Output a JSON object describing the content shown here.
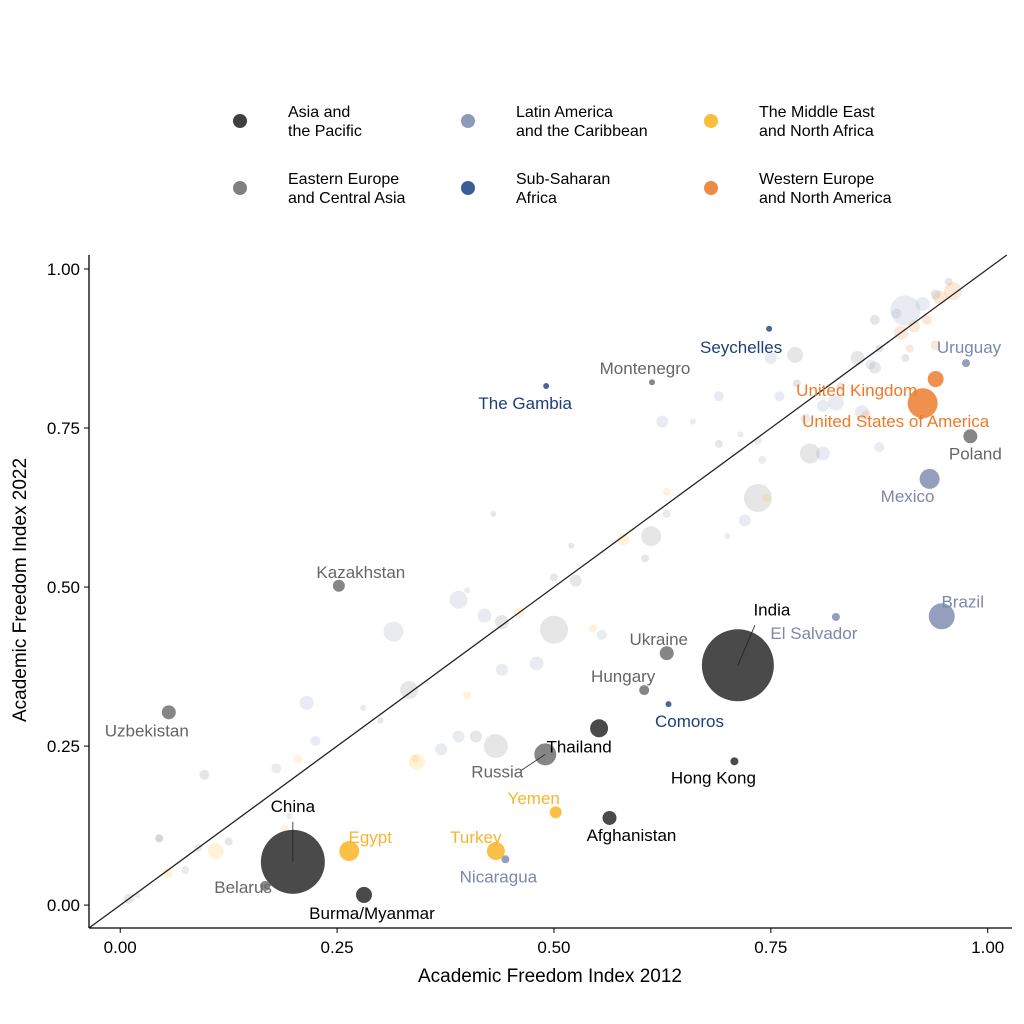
{
  "chart_data": {
    "type": "scatter",
    "title": "",
    "xlabel": "Academic Freedom Index 2012",
    "ylabel": "Academic Freedom Index 2022",
    "xlim": [
      -0.036,
      1.028
    ],
    "ylim": [
      -0.036,
      1.022
    ],
    "xticks": [
      0,
      0.25,
      0.5,
      0.75,
      1
    ],
    "xtick_labels": [
      "0.00",
      "0.25",
      "0.50",
      "0.75",
      "1.00"
    ],
    "yticks": [
      0,
      0.25,
      0.5,
      0.75,
      1
    ],
    "ytick_labels": [
      "0.00",
      "0.25",
      "0.50",
      "0.75",
      "1.00"
    ],
    "grid": false,
    "reference_line": "y = x",
    "legend_placement": "top",
    "regions": [
      {
        "key": "asia",
        "label": "Asia and\nthe Pacific",
        "color": "#404040",
        "label_color": "#000000"
      },
      {
        "key": "latam",
        "label": "Latin America\nand the Caribbean",
        "color": "#8e9aba",
        "label_color": "#7a88ab"
      },
      {
        "key": "mena",
        "label": "The Middle East\nand North Africa",
        "color": "#fbbd3c",
        "label_color": "#f7b52c"
      },
      {
        "key": "eeca",
        "label": "Eastern Europe\nand Central Asia",
        "color": "#808080",
        "label_color": "#666666"
      },
      {
        "key": "ssa",
        "label": "Sub-Saharan\nAfrica",
        "color": "#3a5f94",
        "label_color": "#1d3f75"
      },
      {
        "key": "wena",
        "label": "Western Europe\nand North America",
        "color": "#ef8a44",
        "label_color": "#ef7a28"
      }
    ],
    "highlighted": [
      {
        "name": "China",
        "region": "asia",
        "x": 0.199,
        "y": 0.068,
        "size": 32
      },
      {
        "name": "India",
        "region": "asia",
        "x": 0.712,
        "y": 0.377,
        "size": 36
      },
      {
        "name": "Burma/Myanmar",
        "region": "asia",
        "x": 0.281,
        "y": 0.016,
        "size": 8
      },
      {
        "name": "Thailand",
        "region": "asia",
        "x": 0.552,
        "y": 0.278,
        "size": 9
      },
      {
        "name": "Afghanistan",
        "region": "asia",
        "x": 0.564,
        "y": 0.137,
        "size": 7
      },
      {
        "name": "Hong Kong",
        "region": "asia",
        "x": 0.708,
        "y": 0.226,
        "size": 4
      },
      {
        "name": "Belarus",
        "region": "eeca",
        "x": 0.167,
        "y": 0.03,
        "size": 5
      },
      {
        "name": "Uzbekistan",
        "region": "eeca",
        "x": 0.056,
        "y": 0.303,
        "size": 7
      },
      {
        "name": "Kazakhstan",
        "region": "eeca",
        "x": 0.252,
        "y": 0.502,
        "size": 6
      },
      {
        "name": "Montenegro",
        "region": "eeca",
        "x": 0.613,
        "y": 0.822,
        "size": 3
      },
      {
        "name": "Russia",
        "region": "eeca",
        "x": 0.49,
        "y": 0.237,
        "size": 11
      },
      {
        "name": "Hungary",
        "region": "eeca",
        "x": 0.604,
        "y": 0.338,
        "size": 5
      },
      {
        "name": "Ukraine",
        "region": "eeca",
        "x": 0.63,
        "y": 0.396,
        "size": 7
      },
      {
        "name": "Poland",
        "region": "eeca",
        "x": 0.98,
        "y": 0.737,
        "size": 7
      },
      {
        "name": "Mexico",
        "region": "latam",
        "x": 0.933,
        "y": 0.67,
        "size": 10
      },
      {
        "name": "Brazil",
        "region": "latam",
        "x": 0.947,
        "y": 0.454,
        "size": 13
      },
      {
        "name": "El Salvador",
        "region": "latam",
        "x": 0.825,
        "y": 0.453,
        "size": 4
      },
      {
        "name": "Nicaragua",
        "region": "latam",
        "x": 0.444,
        "y": 0.072,
        "size": 4
      },
      {
        "name": "Uruguay",
        "region": "latam",
        "x": 0.975,
        "y": 0.852,
        "size": 4
      },
      {
        "name": "Egypt",
        "region": "mena",
        "x": 0.264,
        "y": 0.085,
        "size": 10
      },
      {
        "name": "Turkey",
        "region": "mena",
        "x": 0.433,
        "y": 0.085,
        "size": 9
      },
      {
        "name": "Yemen",
        "region": "mena",
        "x": 0.502,
        "y": 0.146,
        "size": 6
      },
      {
        "name": "The Gambia",
        "region": "ssa",
        "x": 0.491,
        "y": 0.816,
        "size": 3
      },
      {
        "name": "Seychelles",
        "region": "ssa",
        "x": 0.748,
        "y": 0.906,
        "size": 3
      },
      {
        "name": "Comoros",
        "region": "ssa",
        "x": 0.632,
        "y": 0.316,
        "size": 3
      },
      {
        "name": "United Kingdom",
        "region": "wena",
        "x": 0.94,
        "y": 0.827,
        "size": 8
      },
      {
        "name": "United States of America",
        "region": "wena",
        "x": 0.925,
        "y": 0.789,
        "size": 15
      }
    ],
    "background": [
      {
        "region": "latam",
        "x": 0.39,
        "y": 0.48,
        "size": 9
      },
      {
        "region": "latam",
        "x": 0.315,
        "y": 0.43,
        "size": 10
      },
      {
        "region": "eeca",
        "x": 0.333,
        "y": 0.338,
        "size": 9
      },
      {
        "region": "latam",
        "x": 0.215,
        "y": 0.318,
        "size": 7
      },
      {
        "region": "latam",
        "x": 0.225,
        "y": 0.258,
        "size": 5
      },
      {
        "region": "latam",
        "x": 0.18,
        "y": 0.215,
        "size": 5
      },
      {
        "region": "eeca",
        "x": 0.097,
        "y": 0.205,
        "size": 5
      },
      {
        "region": "mena",
        "x": 0.205,
        "y": 0.23,
        "size": 4
      },
      {
        "region": "latam",
        "x": 0.28,
        "y": 0.31,
        "size": 3
      },
      {
        "region": "eeca",
        "x": 0.3,
        "y": 0.29,
        "size": 3
      },
      {
        "region": "mena",
        "x": 0.342,
        "y": 0.225,
        "size": 8
      },
      {
        "region": "latam",
        "x": 0.37,
        "y": 0.245,
        "size": 6
      },
      {
        "region": "latam",
        "x": 0.39,
        "y": 0.265,
        "size": 6
      },
      {
        "region": "eeca",
        "x": 0.41,
        "y": 0.265,
        "size": 6
      },
      {
        "region": "eeca",
        "x": 0.433,
        "y": 0.25,
        "size": 12
      },
      {
        "region": "mena",
        "x": 0.4,
        "y": 0.33,
        "size": 4
      },
      {
        "region": "latam",
        "x": 0.42,
        "y": 0.455,
        "size": 7
      },
      {
        "region": "eeca",
        "x": 0.44,
        "y": 0.445,
        "size": 7
      },
      {
        "region": "latam",
        "x": 0.44,
        "y": 0.37,
        "size": 6
      },
      {
        "region": "latam",
        "x": 0.48,
        "y": 0.38,
        "size": 7
      },
      {
        "region": "eeca",
        "x": 0.5,
        "y": 0.433,
        "size": 14
      },
      {
        "region": "mena",
        "x": 0.46,
        "y": 0.46,
        "size": 5
      },
      {
        "region": "latam",
        "x": 0.4,
        "y": 0.495,
        "size": 3
      },
      {
        "region": "eeca",
        "x": 0.43,
        "y": 0.615,
        "size": 3
      },
      {
        "region": "eeca",
        "x": 0.5,
        "y": 0.515,
        "size": 4
      },
      {
        "region": "eeca",
        "x": 0.52,
        "y": 0.565,
        "size": 3
      },
      {
        "region": "eeca",
        "x": 0.525,
        "y": 0.51,
        "size": 6
      },
      {
        "region": "mena",
        "x": 0.545,
        "y": 0.435,
        "size": 4
      },
      {
        "region": "latam",
        "x": 0.555,
        "y": 0.425,
        "size": 5
      },
      {
        "region": "mena",
        "x": 0.58,
        "y": 0.575,
        "size": 6
      },
      {
        "region": "eeca",
        "x": 0.612,
        "y": 0.58,
        "size": 10
      },
      {
        "region": "latam",
        "x": 0.63,
        "y": 0.615,
        "size": 4
      },
      {
        "region": "mena",
        "x": 0.63,
        "y": 0.65,
        "size": 4
      },
      {
        "region": "eeca",
        "x": 0.605,
        "y": 0.545,
        "size": 4
      },
      {
        "region": "latam",
        "x": 0.625,
        "y": 0.76,
        "size": 6
      },
      {
        "region": "latam",
        "x": 0.66,
        "y": 0.76,
        "size": 3
      },
      {
        "region": "latam",
        "x": 0.69,
        "y": 0.8,
        "size": 5
      },
      {
        "region": "eeca",
        "x": 0.69,
        "y": 0.725,
        "size": 4
      },
      {
        "region": "latam",
        "x": 0.7,
        "y": 0.58,
        "size": 3
      },
      {
        "region": "latam",
        "x": 0.72,
        "y": 0.605,
        "size": 6
      },
      {
        "region": "eeca",
        "x": 0.735,
        "y": 0.64,
        "size": 14
      },
      {
        "region": "mena",
        "x": 0.745,
        "y": 0.64,
        "size": 4
      },
      {
        "region": "latam",
        "x": 0.735,
        "y": 0.73,
        "size": 4
      },
      {
        "region": "latam",
        "x": 0.74,
        "y": 0.7,
        "size": 4
      },
      {
        "region": "latam",
        "x": 0.715,
        "y": 0.74,
        "size": 3
      },
      {
        "region": "latam",
        "x": 0.75,
        "y": 0.86,
        "size": 6
      },
      {
        "region": "eeca",
        "x": 0.778,
        "y": 0.865,
        "size": 8
      },
      {
        "region": "eeca",
        "x": 0.78,
        "y": 0.82,
        "size": 4
      },
      {
        "region": "latam",
        "x": 0.76,
        "y": 0.8,
        "size": 5
      },
      {
        "region": "eeca",
        "x": 0.795,
        "y": 0.71,
        "size": 10
      },
      {
        "region": "latam",
        "x": 0.81,
        "y": 0.71,
        "size": 7
      },
      {
        "region": "latam",
        "x": 0.79,
        "y": 0.765,
        "size": 5
      },
      {
        "region": "latam",
        "x": 0.81,
        "y": 0.785,
        "size": 6
      },
      {
        "region": "latam",
        "x": 0.825,
        "y": 0.79,
        "size": 8
      },
      {
        "region": "eeca",
        "x": 0.83,
        "y": 0.815,
        "size": 4
      },
      {
        "region": "latam",
        "x": 0.855,
        "y": 0.775,
        "size": 7
      },
      {
        "region": "latam",
        "x": 0.875,
        "y": 0.72,
        "size": 5
      },
      {
        "region": "wena",
        "x": 0.86,
        "y": 0.77,
        "size": 5
      },
      {
        "region": "eeca",
        "x": 0.85,
        "y": 0.86,
        "size": 7
      },
      {
        "region": "eeca",
        "x": 0.875,
        "y": 0.875,
        "size": 4
      },
      {
        "region": "latam",
        "x": 0.865,
        "y": 0.85,
        "size": 5
      },
      {
        "region": "eeca",
        "x": 0.87,
        "y": 0.845,
        "size": 6
      },
      {
        "region": "latam",
        "x": 0.895,
        "y": 0.93,
        "size": 5
      },
      {
        "region": "eeca",
        "x": 0.87,
        "y": 0.92,
        "size": 5
      },
      {
        "region": "latam",
        "x": 0.905,
        "y": 0.935,
        "size": 15
      },
      {
        "region": "wena",
        "x": 0.9,
        "y": 0.9,
        "size": 7
      },
      {
        "region": "wena",
        "x": 0.915,
        "y": 0.91,
        "size": 6
      },
      {
        "region": "wena",
        "x": 0.93,
        "y": 0.92,
        "size": 5
      },
      {
        "region": "latam",
        "x": 0.925,
        "y": 0.945,
        "size": 7
      },
      {
        "region": "eeca",
        "x": 0.94,
        "y": 0.96,
        "size": 5
      },
      {
        "region": "wena",
        "x": 0.945,
        "y": 0.955,
        "size": 7
      },
      {
        "region": "wena",
        "x": 0.96,
        "y": 0.965,
        "size": 9
      },
      {
        "region": "eeca",
        "x": 0.955,
        "y": 0.98,
        "size": 4
      },
      {
        "region": "wena",
        "x": 0.94,
        "y": 0.88,
        "size": 5
      },
      {
        "region": "wena",
        "x": 0.91,
        "y": 0.875,
        "size": 4
      },
      {
        "region": "eeca",
        "x": 0.905,
        "y": 0.86,
        "size": 4
      },
      {
        "region": "latam",
        "x": 0.045,
        "y": 0.105,
        "size": 4
      },
      {
        "region": "eeca",
        "x": 0.045,
        "y": 0.105,
        "size": 4
      },
      {
        "region": "latam",
        "x": 0.09,
        "y": 0.09,
        "size": 4
      },
      {
        "region": "mena",
        "x": 0.11,
        "y": 0.085,
        "size": 8
      },
      {
        "region": "eeca",
        "x": 0.125,
        "y": 0.1,
        "size": 4
      },
      {
        "region": "latam",
        "x": 0.075,
        "y": 0.055,
        "size": 4
      },
      {
        "region": "mena",
        "x": 0.055,
        "y": 0.05,
        "size": 5
      },
      {
        "region": "eeca",
        "x": 0.01,
        "y": 0.01,
        "size": 5
      },
      {
        "region": "latam",
        "x": 0.02,
        "y": 0.015,
        "size": 3
      },
      {
        "region": "mena",
        "x": 0.19,
        "y": 0.12,
        "size": 4
      },
      {
        "region": "latam",
        "x": 0.195,
        "y": 0.14,
        "size": 3
      },
      {
        "region": "mena",
        "x": 0.34,
        "y": 0.23,
        "size": 4
      }
    ]
  }
}
